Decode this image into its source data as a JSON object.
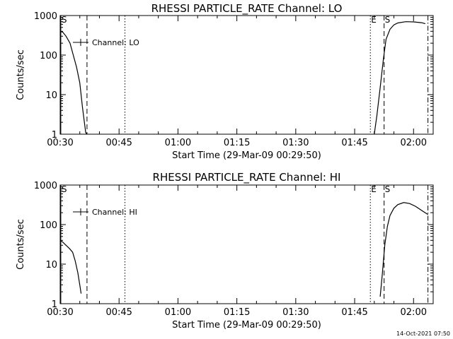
{
  "chart_data": [
    {
      "type": "line",
      "title": "RHESSI PARTICLE_RATE Channel: LO",
      "xlabel": "Start Time (29-Mar-09 00:29:50)",
      "ylabel": "Counts/sec",
      "yscale": "log",
      "ylim": [
        1,
        1000
      ],
      "xlim": [
        "00:30",
        "02:05"
      ],
      "xticks": [
        "00:30",
        "00:45",
        "01:00",
        "01:15",
        "01:30",
        "01:45",
        "02:00"
      ],
      "yticks": [
        "1",
        "10",
        "100",
        "1000"
      ],
      "legend": "top-left",
      "grid": false,
      "series": [
        {
          "name": "Channel: LO",
          "segments": [
            {
              "x": [
                "00:30:00",
                "00:30:40",
                "00:31:30",
                "00:32:30",
                "00:33:20",
                "00:34:10",
                "00:35:00",
                "00:35:40",
                "00:36:10",
                "00:36:30",
                "00:36:50"
              ],
              "y": [
                400,
                380,
                300,
                200,
                100,
                50,
                20,
                5,
                2,
                1.1,
                1
              ]
            },
            {
              "x": [
                "01:50:00",
                "01:50:40",
                "01:51:30",
                "01:52:20",
                "01:53:00",
                "01:54:00",
                "01:55:00",
                "01:56:00",
                "01:58:00",
                "02:00:00",
                "02:02:00",
                "02:03:00"
              ],
              "y": [
                1,
                3,
                15,
                80,
                250,
                450,
                580,
                650,
                700,
                690,
                660,
                620
              ]
            }
          ]
        }
      ],
      "markers": [
        {
          "label": "S",
          "time": "00:30:10",
          "style": "solid"
        },
        {
          "label": "",
          "time": "00:36:50",
          "style": "dashed"
        },
        {
          "label": "",
          "time": "00:46:30",
          "style": "dotted"
        },
        {
          "label": "E",
          "time": "01:49:00",
          "style": "dotted"
        },
        {
          "label": "S",
          "time": "01:52:30",
          "style": "dashed"
        },
        {
          "label": "",
          "time": "02:03:40",
          "style": "dashdot"
        }
      ]
    },
    {
      "type": "line",
      "title": "RHESSI PARTICLE_RATE Channel: HI",
      "xlabel": "Start Time (29-Mar-09 00:29:50)",
      "ylabel": "Counts/sec",
      "yscale": "log",
      "ylim": [
        1,
        1000
      ],
      "xlim": [
        "00:30",
        "02:05"
      ],
      "xticks": [
        "00:30",
        "00:45",
        "01:00",
        "01:15",
        "01:30",
        "01:45",
        "02:00"
      ],
      "yticks": [
        "1",
        "10",
        "100",
        "1000"
      ],
      "legend": "top-left",
      "grid": false,
      "series": [
        {
          "name": "Channel: HI",
          "segments": [
            {
              "x": [
                "00:30:00",
                "00:30:40",
                "00:31:30",
                "00:32:20",
                "00:33:10",
                "00:33:50",
                "00:34:30",
                "00:35:00",
                "00:35:20"
              ],
              "y": [
                40,
                36,
                30,
                25,
                20,
                12,
                6,
                3,
                1.8
              ]
            },
            {
              "x": [
                "01:51:30",
                "01:52:00",
                "01:52:40",
                "01:53:20",
                "01:54:00",
                "01:55:00",
                "01:56:00",
                "01:57:30",
                "01:59:00",
                "02:00:30",
                "02:02:00",
                "02:03:40"
              ],
              "y": [
                1.5,
                5,
                30,
                90,
                170,
                260,
                320,
                360,
                340,
                290,
                230,
                180
              ]
            }
          ]
        }
      ],
      "markers": [
        {
          "label": "S",
          "time": "00:30:10",
          "style": "solid"
        },
        {
          "label": "",
          "time": "00:36:50",
          "style": "dashed"
        },
        {
          "label": "",
          "time": "00:46:30",
          "style": "dotted"
        },
        {
          "label": "E",
          "time": "01:49:00",
          "style": "dotted"
        },
        {
          "label": "S",
          "time": "01:52:30",
          "style": "dashed"
        },
        {
          "label": "",
          "time": "02:03:40",
          "style": "dashdot"
        }
      ]
    }
  ],
  "footer": {
    "timestamp": "14-Oct-2021 07:50"
  }
}
